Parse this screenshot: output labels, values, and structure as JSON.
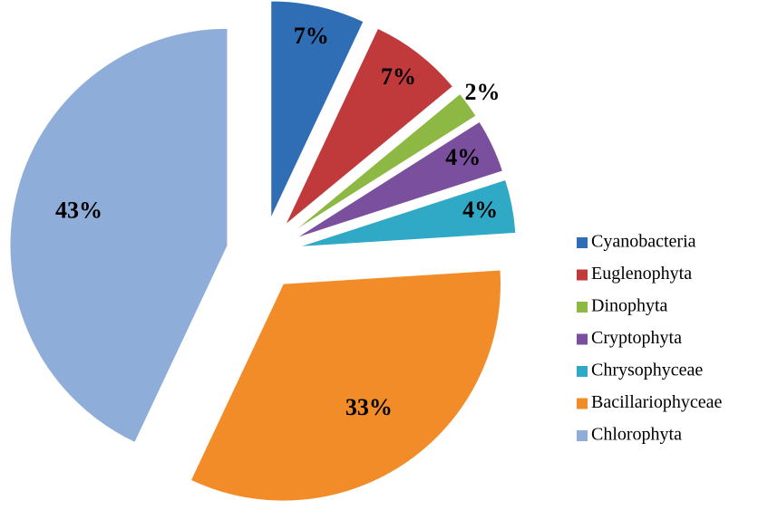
{
  "chart_data": {
    "type": "pie",
    "categories": [
      "Cyanobacteria",
      "Euglenophyta",
      "Dinophyta",
      "Cryptophyta",
      "Chrysophyceae",
      "Bacillariophyceae",
      "Chlorophyta"
    ],
    "values": [
      7,
      7,
      2,
      4,
      4,
      33,
      43
    ],
    "value_labels": [
      "7%",
      "7%",
      "2%",
      "4%",
      "4%",
      "33%",
      "43%"
    ],
    "colors": [
      "#2f6db5",
      "#c0393b",
      "#8db843",
      "#7a4f9e",
      "#2fa9c6",
      "#f28c28",
      "#8fadd9"
    ],
    "legend": "right"
  }
}
